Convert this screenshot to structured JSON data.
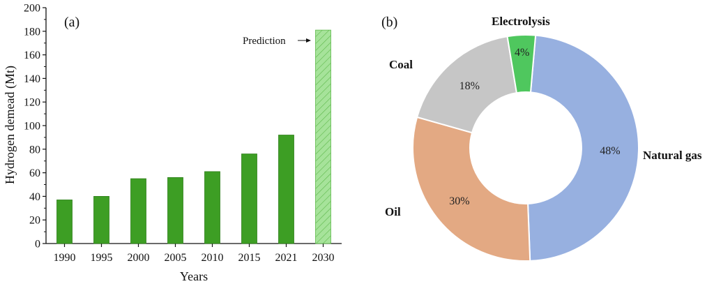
{
  "chart_data": [
    {
      "type": "bar",
      "panel_label": "(a)",
      "categories": [
        "1990",
        "1995",
        "2000",
        "2005",
        "2010",
        "2015",
        "2021",
        "2030"
      ],
      "values": [
        37,
        40,
        55,
        56,
        61,
        76,
        92,
        181
      ],
      "predicted": [
        false,
        false,
        false,
        false,
        false,
        false,
        false,
        true
      ],
      "xlabel": "Years",
      "ylabel": "Hydrogen demead (Mt)",
      "ylim": [
        0,
        200
      ],
      "yticks": [
        0,
        20,
        40,
        60,
        80,
        100,
        120,
        140,
        160,
        180,
        200
      ],
      "annotation": "Prediction",
      "colors": {
        "actual": "#3d9e24",
        "actual_edge": "#2f7f1b",
        "predicted": "#a6e39a",
        "predicted_edge": "#5db84a"
      }
    },
    {
      "type": "pie",
      "style": "donut",
      "panel_label": "(b)",
      "slices": [
        {
          "label": "Natural gas",
          "value": 48,
          "text": "48%",
          "color": "#97b0e0"
        },
        {
          "label": "Oil",
          "value": 30,
          "text": "30%",
          "color": "#e3a983"
        },
        {
          "label": "Coal",
          "value": 18,
          "text": "18%",
          "color": "#c6c6c6"
        },
        {
          "label": "Electrolysis",
          "value": 4,
          "text": "4%",
          "color": "#4fc75e"
        }
      ]
    }
  ]
}
